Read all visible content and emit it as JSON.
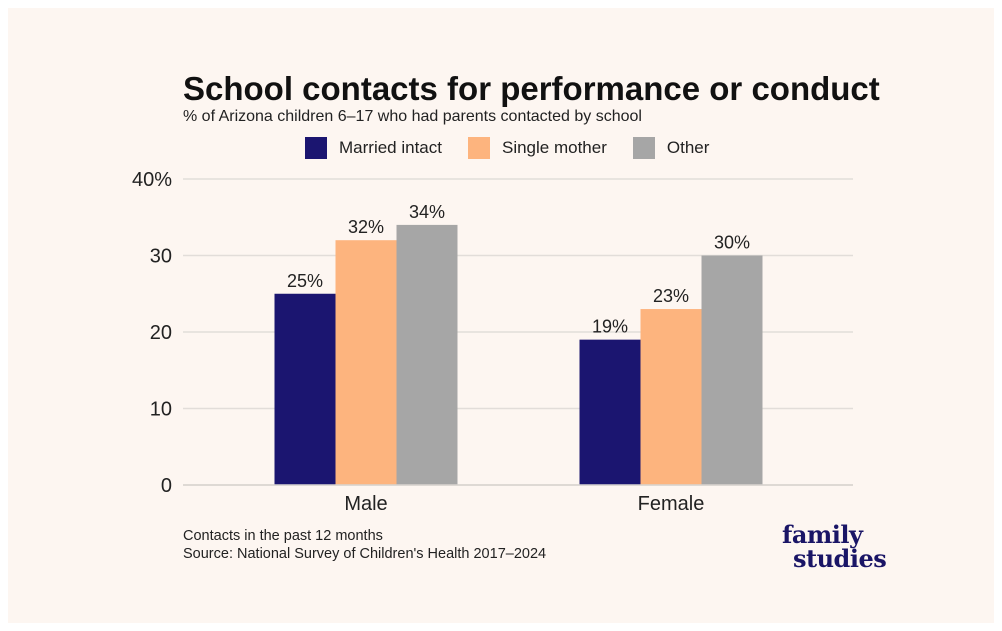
{
  "chart_data": {
    "type": "bar",
    "title": "School contacts for performance or conduct",
    "subtitle": "% of Arizona children 6–17 who had parents contacted by school",
    "categories": [
      "Male",
      "Female"
    ],
    "series": [
      {
        "name": "Married intact",
        "values": [
          25,
          19
        ],
        "labels": [
          "25%",
          "19%"
        ],
        "color": "#1b1570"
      },
      {
        "name": "Single mother",
        "values": [
          32,
          23
        ],
        "labels": [
          "32%",
          "23%"
        ],
        "color": "#fdb47e"
      },
      {
        "name": "Other",
        "values": [
          34,
          30
        ],
        "labels": [
          "34%",
          "30%"
        ],
        "color": "#a6a6a6"
      }
    ],
    "ylim": [
      0,
      40
    ],
    "yticks": [
      0,
      10,
      20,
      30,
      40
    ],
    "ytick_labels": [
      "0",
      "10",
      "20",
      "30",
      "40%"
    ],
    "xlabel": "",
    "ylabel": "",
    "grid": true,
    "legend_position": "top"
  },
  "footnote": {
    "line1": "Contacts in the past 12 months",
    "line2": "Source: National Survey of Children's Health 2017–2024"
  },
  "logo": {
    "line1": "family",
    "line2": "studies",
    "color": "#1a1566"
  }
}
